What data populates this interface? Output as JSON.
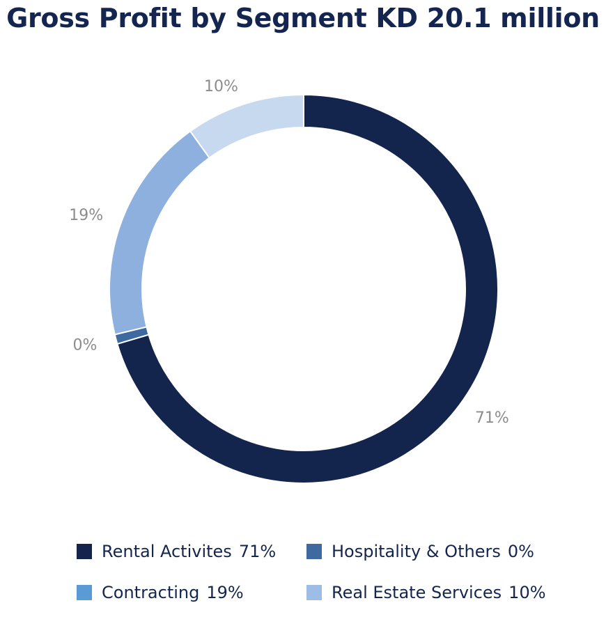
{
  "chart_data": {
    "type": "pie",
    "donut": true,
    "title": "Gross Profit by Segment KD 20.1 million",
    "slices": [
      {
        "name": "Rental Activites",
        "value": 71,
        "label": "71%",
        "color": "#13244d"
      },
      {
        "name": "Hospitality & Others",
        "value": 0,
        "label": "0%",
        "color": "#3f6aa0"
      },
      {
        "name": "Contracting",
        "value": 19,
        "label": "19%",
        "color": "#8db0de"
      },
      {
        "name": "Real Estate Services",
        "value": 10,
        "label": "10%",
        "color": "#c7d9ee"
      }
    ],
    "legend": {
      "placement": "bottom",
      "items": [
        {
          "name": "Rental Activites",
          "value": "71%",
          "color": "#13244d"
        },
        {
          "name": "Hospitality & Others",
          "value": "0%",
          "color": "#3f6aa0"
        },
        {
          "name": "Contracting",
          "value": "19%",
          "color": "#5b9bd5"
        },
        {
          "name": "Real Estate Services",
          "value": "10%",
          "color": "#9dbde6"
        }
      ]
    }
  }
}
